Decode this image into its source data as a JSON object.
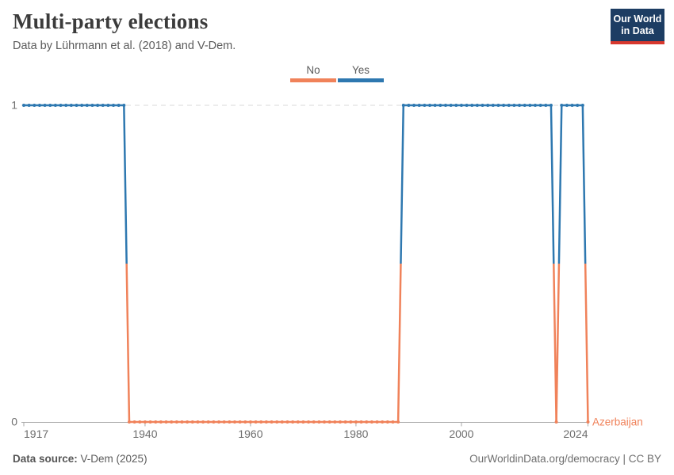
{
  "header": {
    "title": "Multi-party elections",
    "subtitle": "Data by Lührmann et al. (2018) and V-Dem.",
    "logo_line1": "Our World",
    "logo_line2": "in Data",
    "logo_bg": "#1d3d63",
    "logo_accent": "#d7382e"
  },
  "legend": {
    "items": [
      {
        "label": "No",
        "color": "#F0825A"
      },
      {
        "label": "Yes",
        "color": "#2E78B0"
      }
    ]
  },
  "chart_data": {
    "type": "line",
    "title": "Multi-party elections",
    "entity": "Azerbaijan",
    "x_range": [
      1917,
      2024
    ],
    "ylim": [
      0,
      1
    ],
    "y_ticks": [
      0,
      1
    ],
    "x_ticks": [
      1917,
      1940,
      1960,
      1980,
      2000,
      2024
    ],
    "grid_y": [
      1
    ],
    "legend_position": "top-center",
    "value_colors": {
      "0": "#F0825A",
      "1": "#2E78B0"
    },
    "value_labels": {
      "0": "No",
      "1": "Yes"
    },
    "series": [
      {
        "name": "Azerbaijan",
        "runs": [
          {
            "from": 1917,
            "to": 1936,
            "value": 1
          },
          {
            "from": 1937,
            "to": 1988,
            "value": 0
          },
          {
            "from": 1989,
            "to": 2017,
            "value": 1
          },
          {
            "from": 2018,
            "to": 2018,
            "value": 0
          },
          {
            "from": 2019,
            "to": 2023,
            "value": 1
          },
          {
            "from": 2024,
            "to": 2024,
            "value": 0
          }
        ]
      }
    ]
  },
  "footer": {
    "source_label": "Data source:",
    "source_value": " V-Dem (2025)",
    "credit": "OurWorldinData.org/democracy | CC BY"
  }
}
